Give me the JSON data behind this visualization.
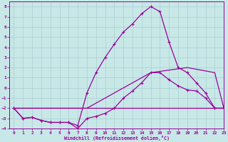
{
  "xlabel": "Windchill (Refroidissement éolien,°C)",
  "xlim": [
    -0.5,
    23
  ],
  "ylim": [
    -4,
    8.5
  ],
  "xticks": [
    0,
    1,
    2,
    3,
    4,
    5,
    6,
    7,
    8,
    9,
    10,
    11,
    12,
    13,
    14,
    15,
    16,
    17,
    18,
    19,
    20,
    21,
    22,
    23
  ],
  "yticks": [
    -4,
    -3,
    -2,
    -1,
    0,
    1,
    2,
    3,
    4,
    5,
    6,
    7,
    8
  ],
  "bg_color": "#c8e8e8",
  "line_color": "#990099",
  "grid_color": "#aacece",
  "lines": [
    {
      "x": [
        0,
        1,
        2,
        3,
        4,
        5,
        6,
        7,
        8,
        9,
        10,
        11,
        12,
        13,
        14,
        15,
        16,
        17,
        18,
        19,
        20,
        21,
        22,
        23
      ],
      "y": [
        -2,
        -3,
        -2.9,
        -3.2,
        -3.4,
        -3.4,
        -3.4,
        -3.7,
        -0.5,
        1.5,
        3.0,
        4.3,
        5.5,
        6.3,
        7.3,
        8.0,
        7.5,
        4.5,
        2.0,
        1.5,
        0.5,
        -0.5,
        -2,
        -2
      ],
      "marker": "+",
      "markersize": 3.5,
      "lw": 0.9
    },
    {
      "x": [
        0,
        1,
        2,
        3,
        4,
        5,
        6,
        7,
        8,
        9,
        10,
        11,
        12,
        13,
        14,
        15,
        16,
        17,
        18,
        19,
        20,
        21,
        22,
        23
      ],
      "y": [
        -2,
        -3,
        -2.9,
        -3.2,
        -3.4,
        -3.4,
        -3.4,
        -4.0,
        -3.0,
        -2.8,
        -2.5,
        -2.0,
        -1.0,
        -0.3,
        0.5,
        1.5,
        1.5,
        0.8,
        0.2,
        -0.2,
        -0.3,
        -1.0,
        -2,
        -2
      ],
      "marker": "+",
      "markersize": 3.5,
      "lw": 0.9
    },
    {
      "x": [
        0,
        23
      ],
      "y": [
        -2,
        -2
      ],
      "marker": null,
      "markersize": 0,
      "lw": 0.9
    },
    {
      "x": [
        0,
        8,
        15,
        19,
        22,
        23
      ],
      "y": [
        -2,
        -2,
        1.5,
        2.0,
        1.5,
        -2
      ],
      "marker": null,
      "markersize": 0,
      "lw": 0.9
    }
  ]
}
